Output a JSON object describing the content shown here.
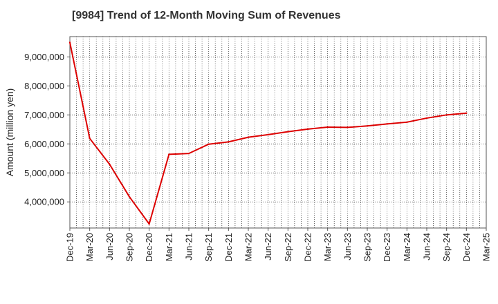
{
  "title": "[9984]  Trend of 12-Month Moving Sum of Revenues",
  "chart_data": {
    "type": "line",
    "title": "[9984]  Trend of 12-Month Moving Sum of Revenues",
    "xlabel": "",
    "ylabel": "Amount (million yen)",
    "ylim": [
      3100000,
      9700000
    ],
    "yticks": [
      4000000,
      5000000,
      6000000,
      7000000,
      8000000,
      9000000
    ],
    "ytick_labels": [
      "4,000,000",
      "5,000,000",
      "6,000,000",
      "7,000,000",
      "8,000,000",
      "9,000,000"
    ],
    "x_tick_labels": [
      "Dec-19",
      "Mar-20",
      "Jun-20",
      "Sep-20",
      "Dec-20",
      "Mar-21",
      "Jun-21",
      "Sep-21",
      "Dec-21",
      "Mar-22",
      "Jun-22",
      "Sep-22",
      "Dec-22",
      "Mar-23",
      "Jun-23",
      "Sep-23",
      "Dec-23",
      "Mar-24",
      "Jun-24",
      "Sep-24",
      "Dec-24",
      "Mar-25"
    ],
    "x_range": [
      "Dec-19",
      "Mar-25"
    ],
    "grid": true,
    "grid_style": "dotted",
    "line_color": "#dd0000",
    "series": [
      {
        "x": [
          "Dec-19",
          "Mar-20",
          "Jun-20",
          "Sep-20",
          "Dec-20",
          "Mar-21",
          "Jun-21",
          "Sep-21",
          "Dec-21",
          "Mar-22",
          "Jun-22",
          "Sep-22",
          "Dec-22",
          "Mar-23",
          "Jun-23",
          "Sep-23",
          "Dec-23",
          "Mar-24",
          "Jun-24",
          "Sep-24",
          "Dec-24"
        ],
        "values": [
          9500000,
          6190000,
          5300000,
          4180000,
          3240000,
          5640000,
          5670000,
          5990000,
          6070000,
          6230000,
          6320000,
          6420000,
          6510000,
          6580000,
          6570000,
          6620000,
          6690000,
          6750000,
          6890000,
          7000000,
          7060000
        ]
      }
    ]
  }
}
